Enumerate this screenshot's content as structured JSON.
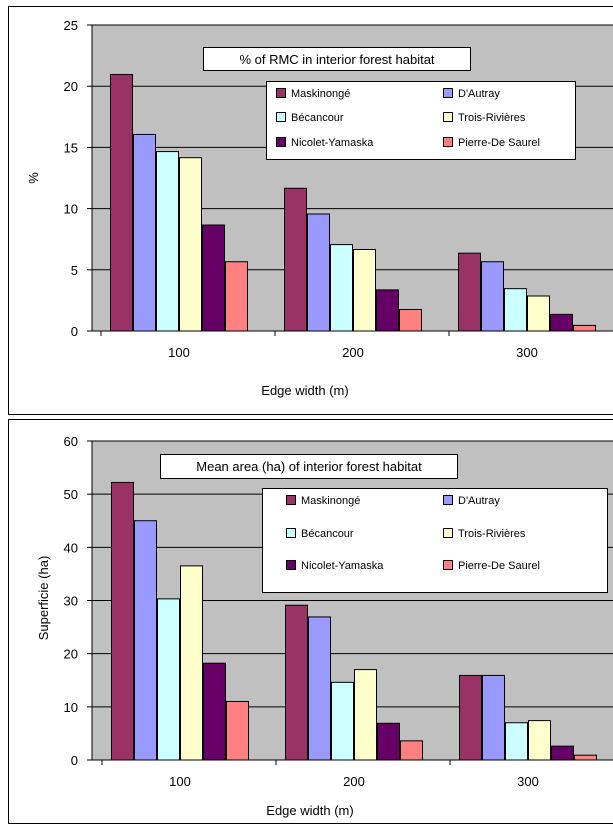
{
  "colors": {
    "plot_bg": "#c0c0c0",
    "page_bg": "#ffffff",
    "gridline": "#000000"
  },
  "chart_data": [
    {
      "type": "bar",
      "title": "% of RMC in interior forest habitat",
      "xlabel": "Edge width (m)",
      "ylabel": "%",
      "categories": [
        "100",
        "200",
        "300"
      ],
      "ylim": [
        0,
        25
      ],
      "yticks": [
        "0",
        "5",
        "10",
        "15",
        "20",
        "25"
      ],
      "grid": true,
      "legend_position": "top-right",
      "series": [
        {
          "name": "Maskinongé",
          "color": "#993366",
          "values": [
            21.0,
            11.7,
            6.4
          ]
        },
        {
          "name": "D'Autray",
          "color": "#9999ff",
          "values": [
            16.1,
            9.6,
            5.7
          ]
        },
        {
          "name": "Bécancour",
          "color": "#ccffff",
          "values": [
            14.7,
            7.1,
            3.5
          ]
        },
        {
          "name": "Trois-Rivières",
          "color": "#ffffcc",
          "values": [
            14.2,
            6.7,
            2.9
          ]
        },
        {
          "name": "Nicolet-Yamaska",
          "color": "#660066",
          "values": [
            8.7,
            3.4,
            1.4
          ]
        },
        {
          "name": "Pierre-De Saurel",
          "color": "#ff8080",
          "values": [
            5.7,
            1.8,
            0.5
          ]
        }
      ]
    },
    {
      "type": "bar",
      "title": "Mean area (ha) of interior forest habitat",
      "xlabel": "Edge width (m)",
      "ylabel": "Superficie (ha)",
      "categories": [
        "100",
        "200",
        "300"
      ],
      "ylim": [
        0,
        60
      ],
      "yticks": [
        "0",
        "10",
        "20",
        "30",
        "40",
        "50",
        "60"
      ],
      "grid": true,
      "legend_position": "top-right",
      "series": [
        {
          "name": "Maskinongé",
          "color": "#993366",
          "values": [
            52.3,
            29.2,
            16.0
          ]
        },
        {
          "name": "D'Autray",
          "color": "#9999ff",
          "values": [
            45.1,
            27.0,
            16.0
          ]
        },
        {
          "name": "Bécancour",
          "color": "#ccffff",
          "values": [
            30.4,
            14.7,
            7.1
          ]
        },
        {
          "name": "Trois-Rivières",
          "color": "#ffffcc",
          "values": [
            36.6,
            17.1,
            7.5
          ]
        },
        {
          "name": "Nicolet-Yamaska",
          "color": "#660066",
          "values": [
            18.3,
            7.0,
            2.7
          ]
        },
        {
          "name": "Pierre-De Saurel",
          "color": "#ff8080",
          "values": [
            11.1,
            3.7,
            1.0
          ]
        }
      ]
    }
  ]
}
